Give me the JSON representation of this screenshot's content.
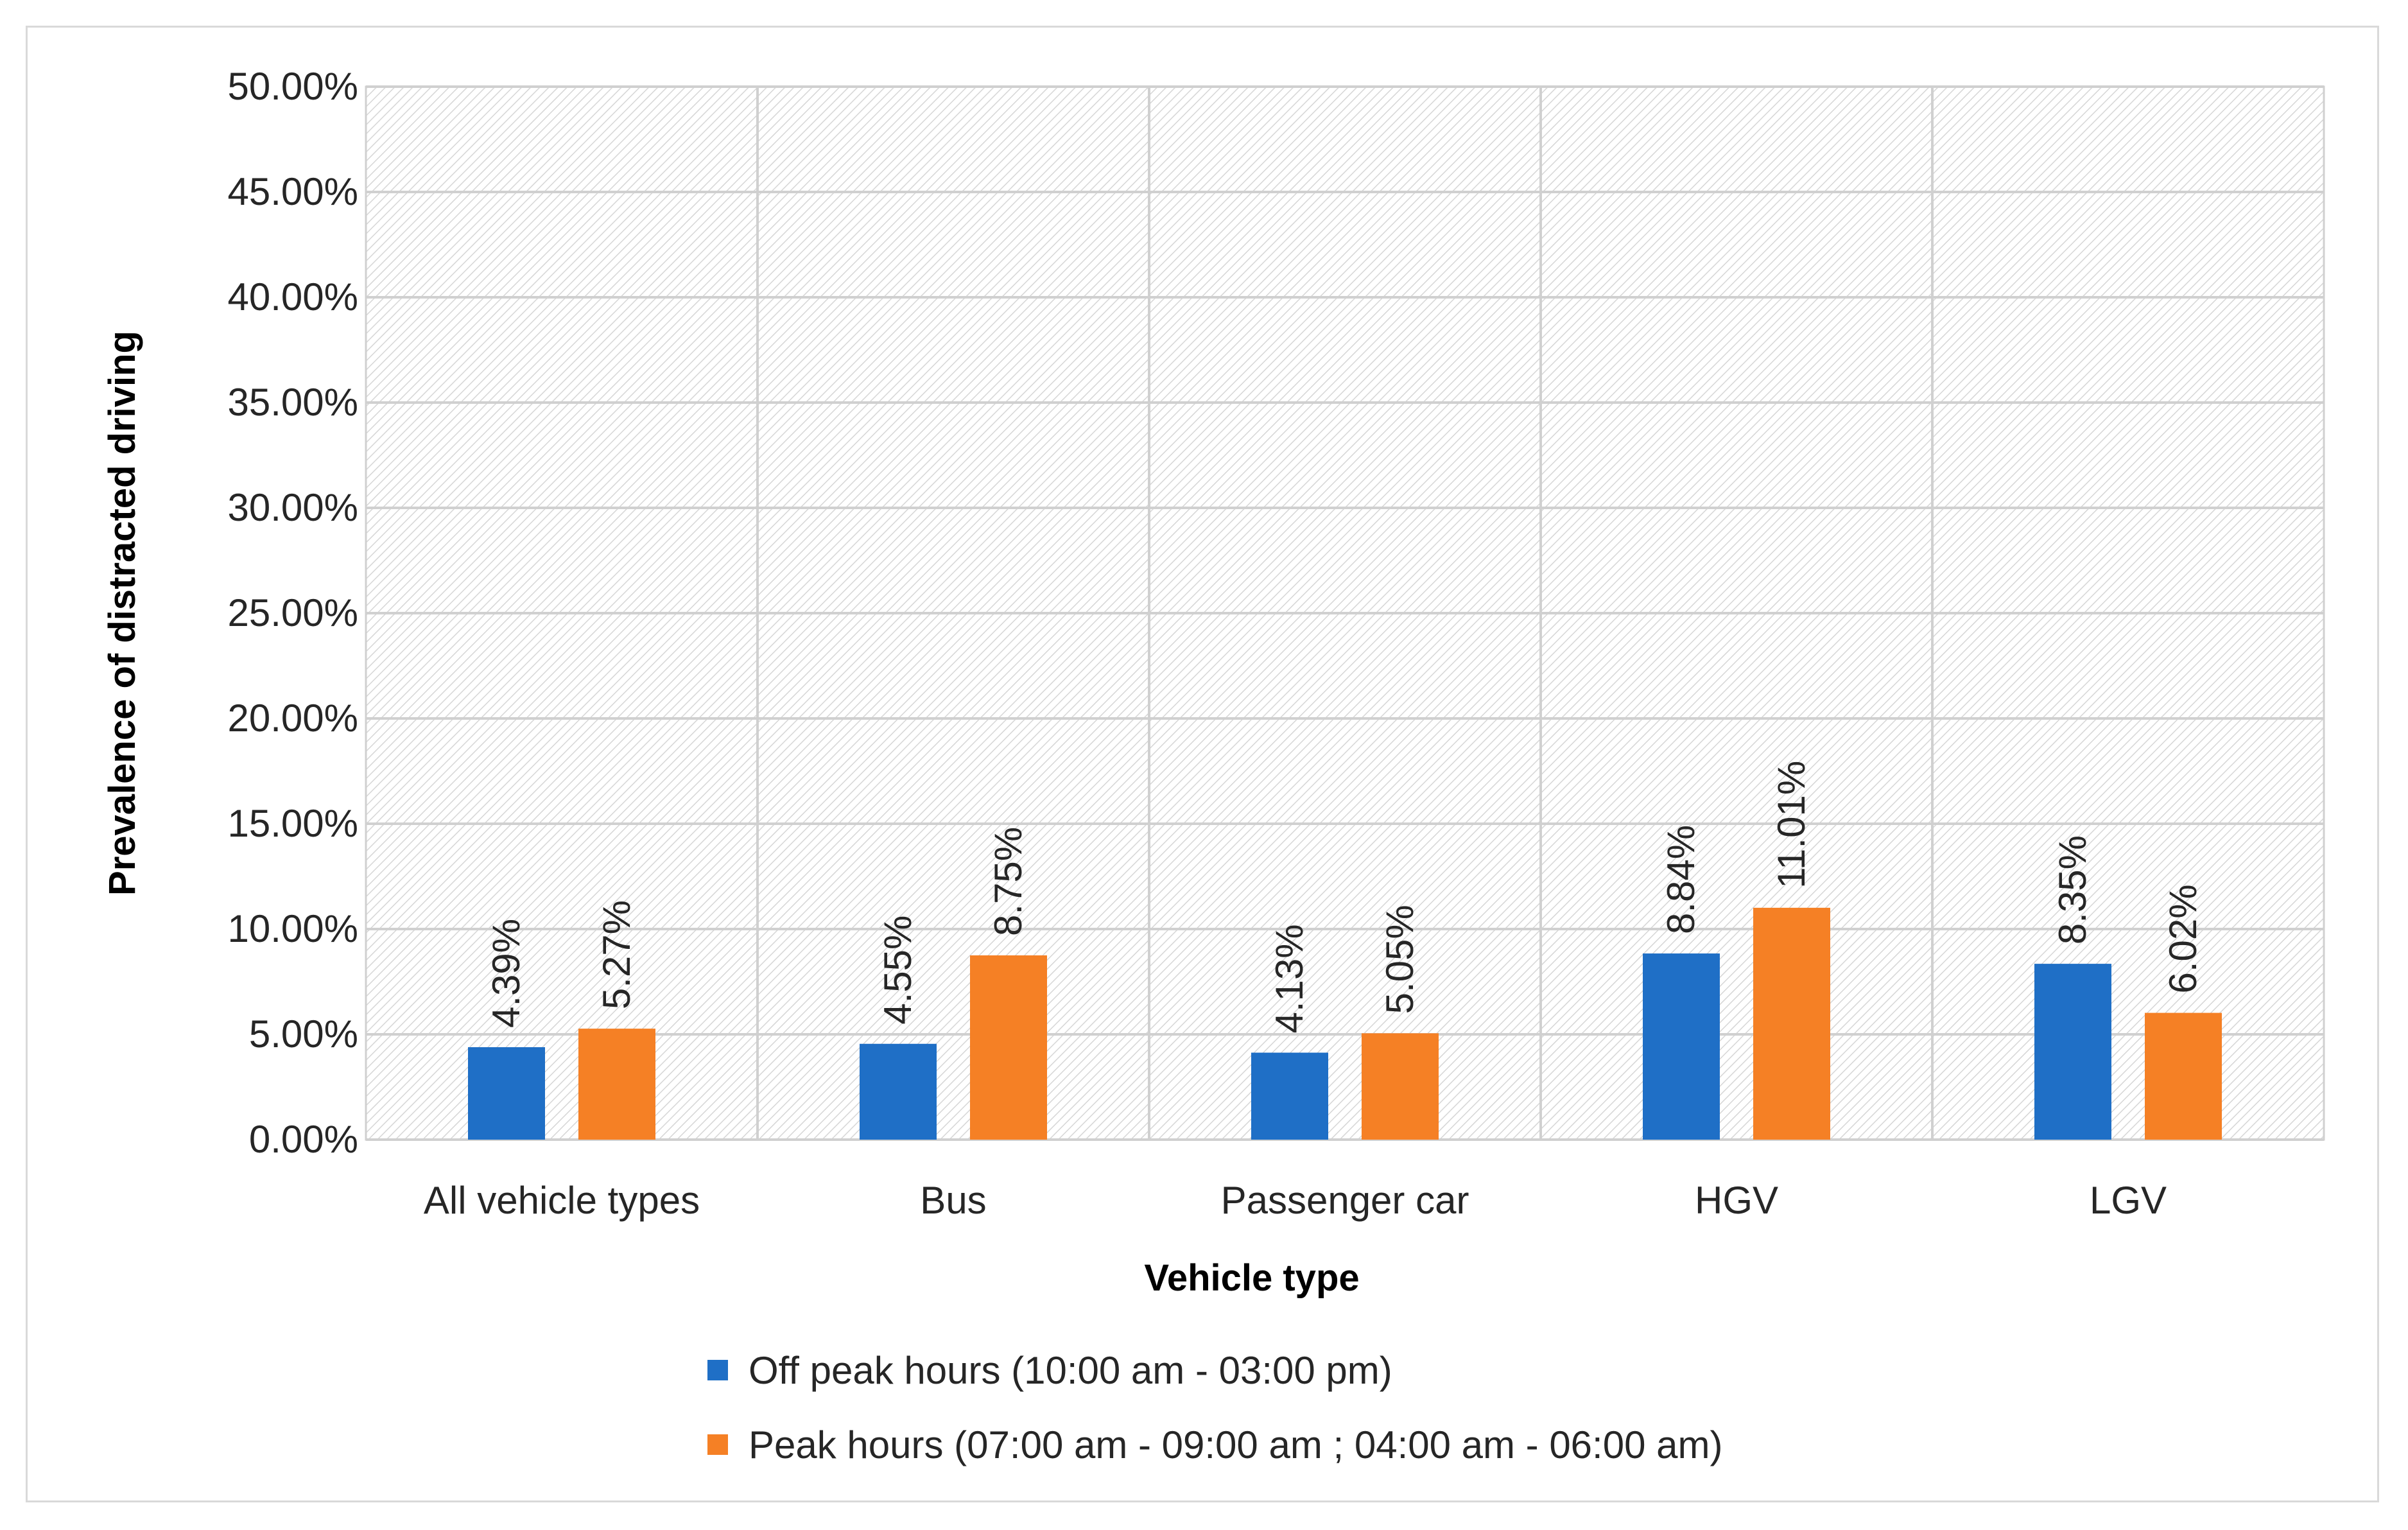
{
  "chart_data": {
    "type": "bar",
    "title": "",
    "xlabel": "Vehicle type",
    "ylabel": "Prevalence of distracted driving",
    "ylim": [
      0,
      50
    ],
    "y_ticks": [
      "0.00%",
      "5.00%",
      "10.00%",
      "15.00%",
      "20.00%",
      "25.00%",
      "30.00%",
      "35.00%",
      "40.00%",
      "45.00%",
      "50.00%"
    ],
    "y_tick_values": [
      0,
      5,
      10,
      15,
      20,
      25,
      30,
      35,
      40,
      45,
      50
    ],
    "categories": [
      "All vehicle types",
      "Bus",
      "Passenger car",
      "HGV",
      "LGV"
    ],
    "grid": true,
    "legend_position": "bottom",
    "series": [
      {
        "name": "Off peak hours (10:00 am - 03:00 pm)",
        "color": "#1f6fc6",
        "values": [
          4.39,
          4.55,
          4.13,
          8.84,
          8.35
        ],
        "labels": [
          "4.39%",
          "4.55%",
          "4.13%",
          "8.84%",
          "8.35%"
        ]
      },
      {
        "name": "Peak hours (07:00 am - 09:00 am ; 04:00 am - 06:00 am)",
        "color": "#f58025",
        "values": [
          5.27,
          8.75,
          5.05,
          11.01,
          6.02
        ],
        "labels": [
          "5.27%",
          "8.75%",
          "5.05%",
          "11.01%",
          "6.02%"
        ]
      }
    ]
  }
}
